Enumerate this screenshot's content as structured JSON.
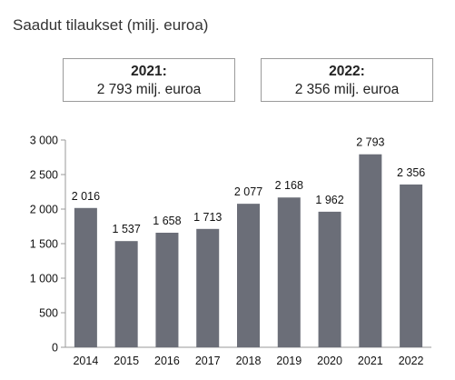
{
  "header": {
    "title": "Saadut tilaukset (milj. euroa)"
  },
  "kpis": [
    {
      "year": "2021:",
      "value": "2 793 milj. euroa"
    },
    {
      "year": "2022:",
      "value": "2 356 milj. euroa"
    }
  ],
  "chart_data": {
    "type": "bar",
    "title": "Saadut tilaukset (milj. euroa)",
    "categories": [
      "2014",
      "2015",
      "2016",
      "2017",
      "2018",
      "2019",
      "2020",
      "2021",
      "2022"
    ],
    "values": [
      2016,
      1537,
      1658,
      1713,
      2077,
      2168,
      1962,
      2793,
      2356
    ],
    "value_labels": [
      "2 016",
      "1 537",
      "1 658",
      "1 713",
      "2 077",
      "2 168",
      "1 962",
      "2 793",
      "2 356"
    ],
    "yticks": [
      0,
      500,
      1000,
      1500,
      2000,
      2500,
      3000
    ],
    "ytick_labels": [
      "0",
      "500",
      "1 000",
      "1 500",
      "2 000",
      "2 500",
      "3 000"
    ],
    "ylim": [
      0,
      3000
    ],
    "xlabel": "",
    "ylabel": "",
    "grid": false,
    "bar_color": "#6b6e78"
  }
}
